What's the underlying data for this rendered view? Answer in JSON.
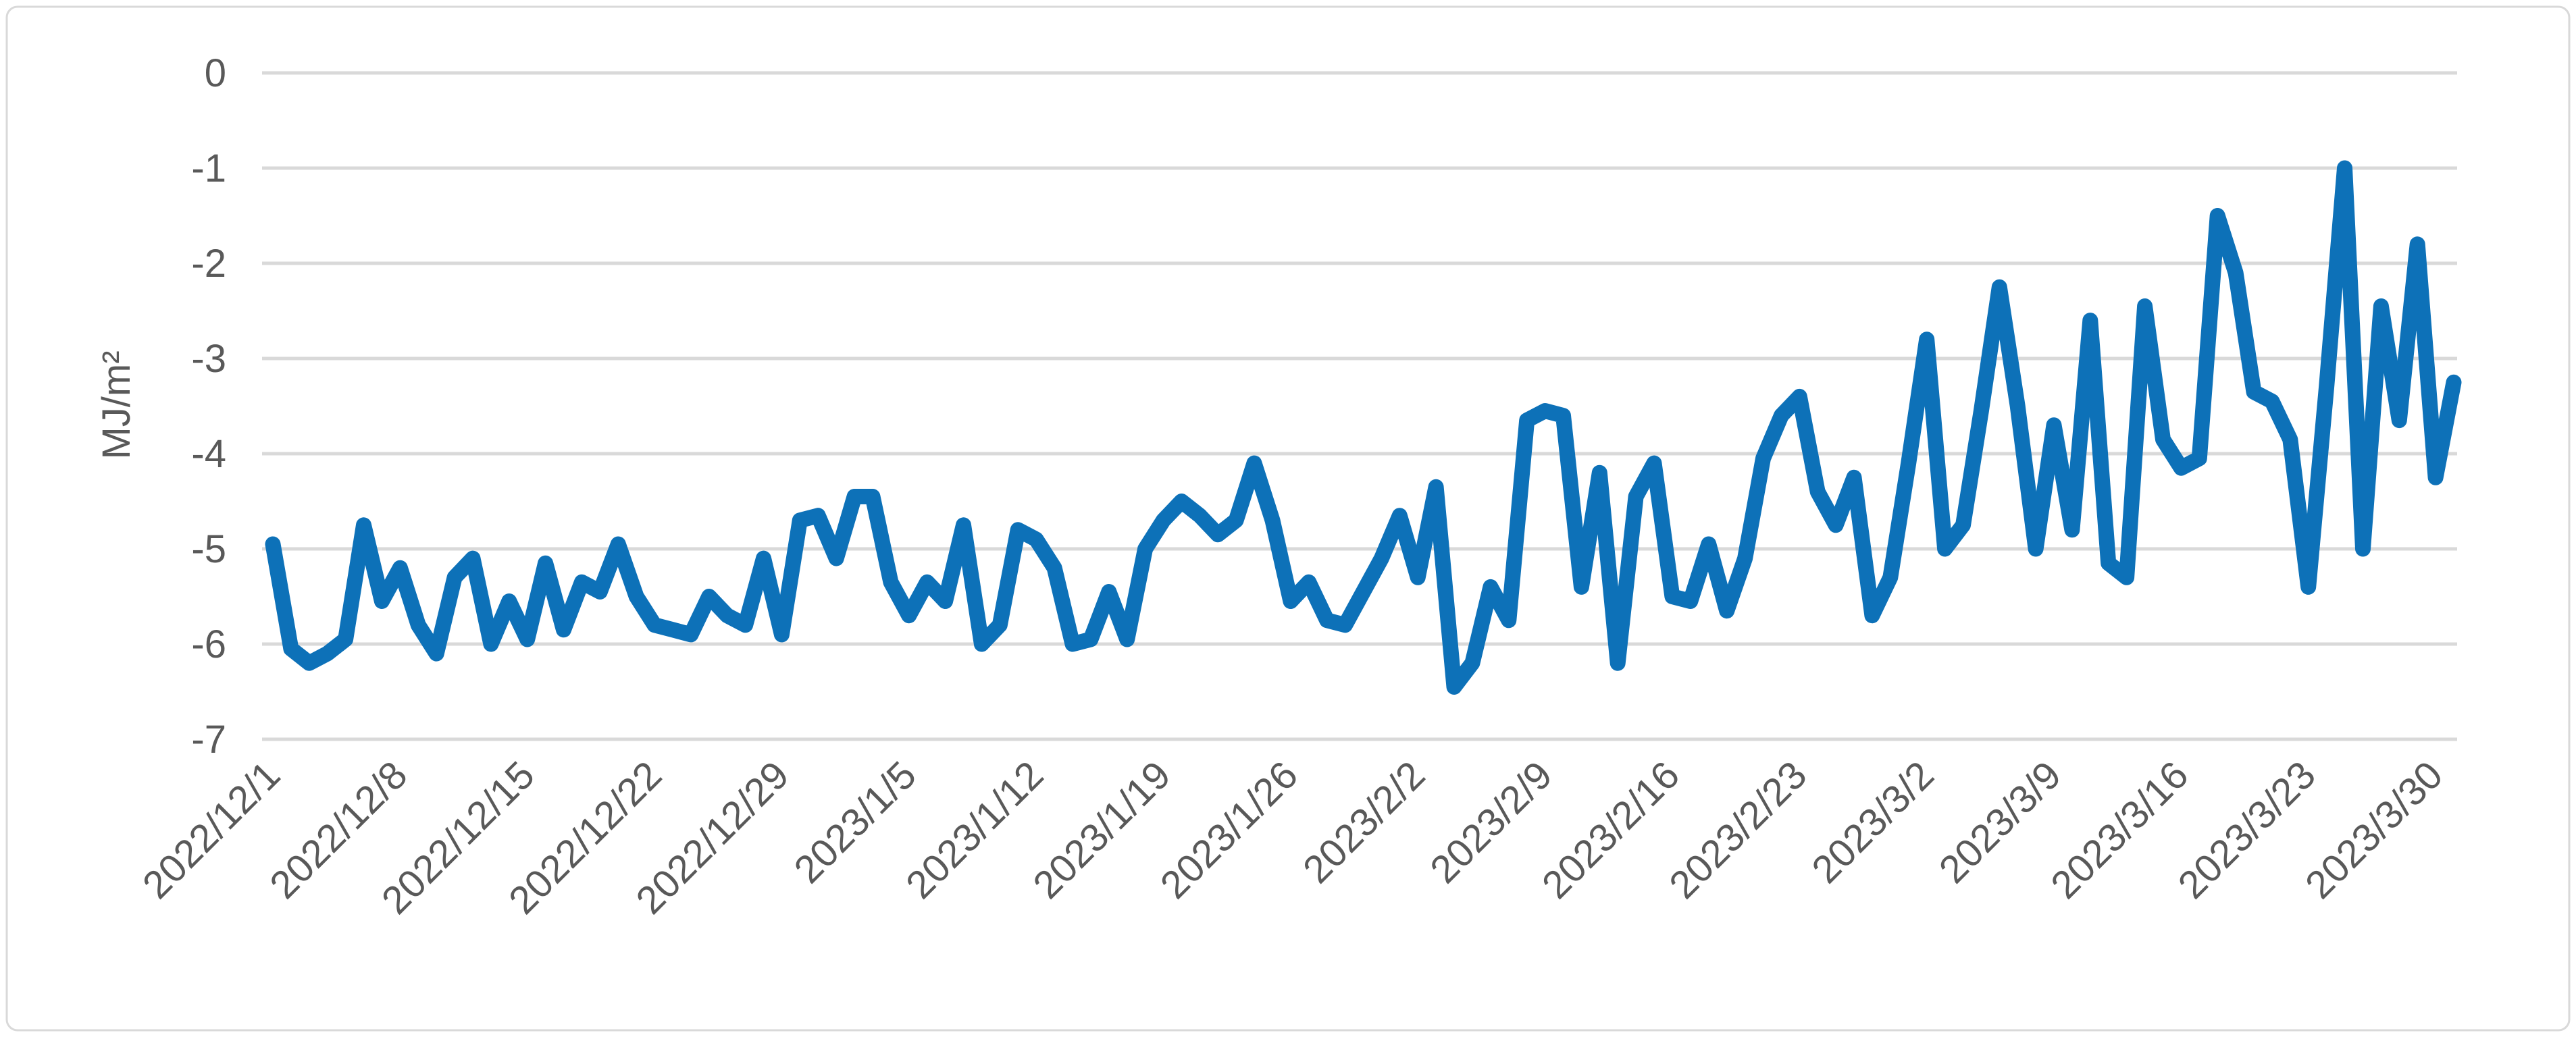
{
  "chart_data": {
    "type": "line",
    "title": "",
    "xlabel": "",
    "ylabel": "MJ/m²",
    "ylim": [
      -7,
      0
    ],
    "y_ticks": [
      0,
      -1,
      -2,
      -3,
      -4,
      -5,
      -6,
      -7
    ],
    "grid": "horizontal",
    "legend_position": "none",
    "x_tick_interval": 7,
    "x_tick_labels": [
      "2022/12/1",
      "2022/12/8",
      "2022/12/15",
      "2022/12/22",
      "2022/12/29",
      "2023/1/5",
      "2023/1/12",
      "2023/1/19",
      "2023/1/26",
      "2023/2/2",
      "2023/2/9",
      "2023/2/16",
      "2023/2/23",
      "2023/3/2",
      "2023/3/9",
      "2023/3/16",
      "2023/3/23",
      "2023/3/30"
    ],
    "categories": [
      "2022/12/1",
      "2022/12/2",
      "2022/12/3",
      "2022/12/4",
      "2022/12/5",
      "2022/12/6",
      "2022/12/7",
      "2022/12/8",
      "2022/12/9",
      "2022/12/10",
      "2022/12/11",
      "2022/12/12",
      "2022/12/13",
      "2022/12/14",
      "2022/12/15",
      "2022/12/16",
      "2022/12/17",
      "2022/12/18",
      "2022/12/19",
      "2022/12/20",
      "2022/12/21",
      "2022/12/22",
      "2022/12/23",
      "2022/12/24",
      "2022/12/25",
      "2022/12/26",
      "2022/12/27",
      "2022/12/28",
      "2022/12/29",
      "2022/12/30",
      "2022/12/31",
      "2023/1/1",
      "2023/1/2",
      "2023/1/3",
      "2023/1/4",
      "2023/1/5",
      "2023/1/6",
      "2023/1/7",
      "2023/1/8",
      "2023/1/9",
      "2023/1/10",
      "2023/1/11",
      "2023/1/12",
      "2023/1/13",
      "2023/1/14",
      "2023/1/15",
      "2023/1/16",
      "2023/1/17",
      "2023/1/18",
      "2023/1/19",
      "2023/1/20",
      "2023/1/21",
      "2023/1/22",
      "2023/1/23",
      "2023/1/24",
      "2023/1/25",
      "2023/1/26",
      "2023/1/27",
      "2023/1/28",
      "2023/1/29",
      "2023/1/30",
      "2023/1/31",
      "2023/2/1",
      "2023/2/2",
      "2023/2/3",
      "2023/2/4",
      "2023/2/5",
      "2023/2/6",
      "2023/2/7",
      "2023/2/8",
      "2023/2/9",
      "2023/2/10",
      "2023/2/11",
      "2023/2/12",
      "2023/2/13",
      "2023/2/14",
      "2023/2/15",
      "2023/2/16",
      "2023/2/17",
      "2023/2/18",
      "2023/2/19",
      "2023/2/20",
      "2023/2/21",
      "2023/2/22",
      "2023/2/23",
      "2023/2/24",
      "2023/2/25",
      "2023/2/26",
      "2023/2/27",
      "2023/2/28",
      "2023/3/1",
      "2023/3/2",
      "2023/3/3",
      "2023/3/4",
      "2023/3/5",
      "2023/3/6",
      "2023/3/7",
      "2023/3/8",
      "2023/3/9",
      "2023/3/10",
      "2023/3/11",
      "2023/3/12",
      "2023/3/13",
      "2023/3/14",
      "2023/3/15",
      "2023/3/16",
      "2023/3/17",
      "2023/3/18",
      "2023/3/19",
      "2023/3/20",
      "2023/3/21",
      "2023/3/22",
      "2023/3/23",
      "2023/3/24",
      "2023/3/25",
      "2023/3/26",
      "2023/3/27",
      "2023/3/28",
      "2023/3/29",
      "2023/3/30",
      "2023/3/31"
    ],
    "values": [
      -4.95,
      -6.05,
      -6.2,
      -6.1,
      -5.95,
      -4.75,
      -5.55,
      -5.2,
      -5.8,
      -6.1,
      -5.3,
      -5.1,
      -6.0,
      -5.55,
      -5.95,
      -5.15,
      -5.85,
      -5.35,
      -5.45,
      -4.95,
      -5.5,
      -5.8,
      -5.85,
      -5.9,
      -5.5,
      -5.7,
      -5.8,
      -5.1,
      -5.9,
      -4.7,
      -4.65,
      -5.1,
      -4.45,
      -4.45,
      -5.35,
      -5.7,
      -5.35,
      -5.55,
      -4.75,
      -6.0,
      -5.8,
      -4.8,
      -4.9,
      -5.2,
      -6.0,
      -5.95,
      -5.45,
      -5.95,
      -5.0,
      -4.7,
      -4.5,
      -4.65,
      -4.85,
      -4.7,
      -4.1,
      -4.7,
      -5.55,
      -5.35,
      -5.75,
      -5.8,
      -5.45,
      -5.1,
      -4.65,
      -5.3,
      -4.35,
      -6.45,
      -6.2,
      -5.4,
      -5.75,
      -3.65,
      -3.55,
      -3.6,
      -5.4,
      -4.2,
      -6.2,
      -4.45,
      -4.1,
      -5.5,
      -5.55,
      -4.95,
      -5.65,
      -5.1,
      -4.05,
      -3.6,
      -3.4,
      -4.4,
      -4.75,
      -4.25,
      -5.7,
      -5.3,
      -4.1,
      -2.8,
      -5.0,
      -4.75,
      -3.55,
      -2.25,
      -3.5,
      -5.0,
      -3.7,
      -4.8,
      -2.6,
      -5.15,
      -5.3,
      -2.45,
      -3.85,
      -4.15,
      -4.05,
      -1.5,
      -2.1,
      -3.35,
      -3.45,
      -3.85,
      -5.4,
      -3.3,
      -1.0,
      -5.0,
      -2.45,
      -3.65,
      -1.8,
      -4.25,
      -3.25
    ]
  },
  "style": {
    "line_color": "#0D71B8",
    "gridline_color": "#D9D9D9",
    "label_color": "#595959",
    "border_color": "#D9D9D9",
    "background_color": "#FFFFFF"
  }
}
